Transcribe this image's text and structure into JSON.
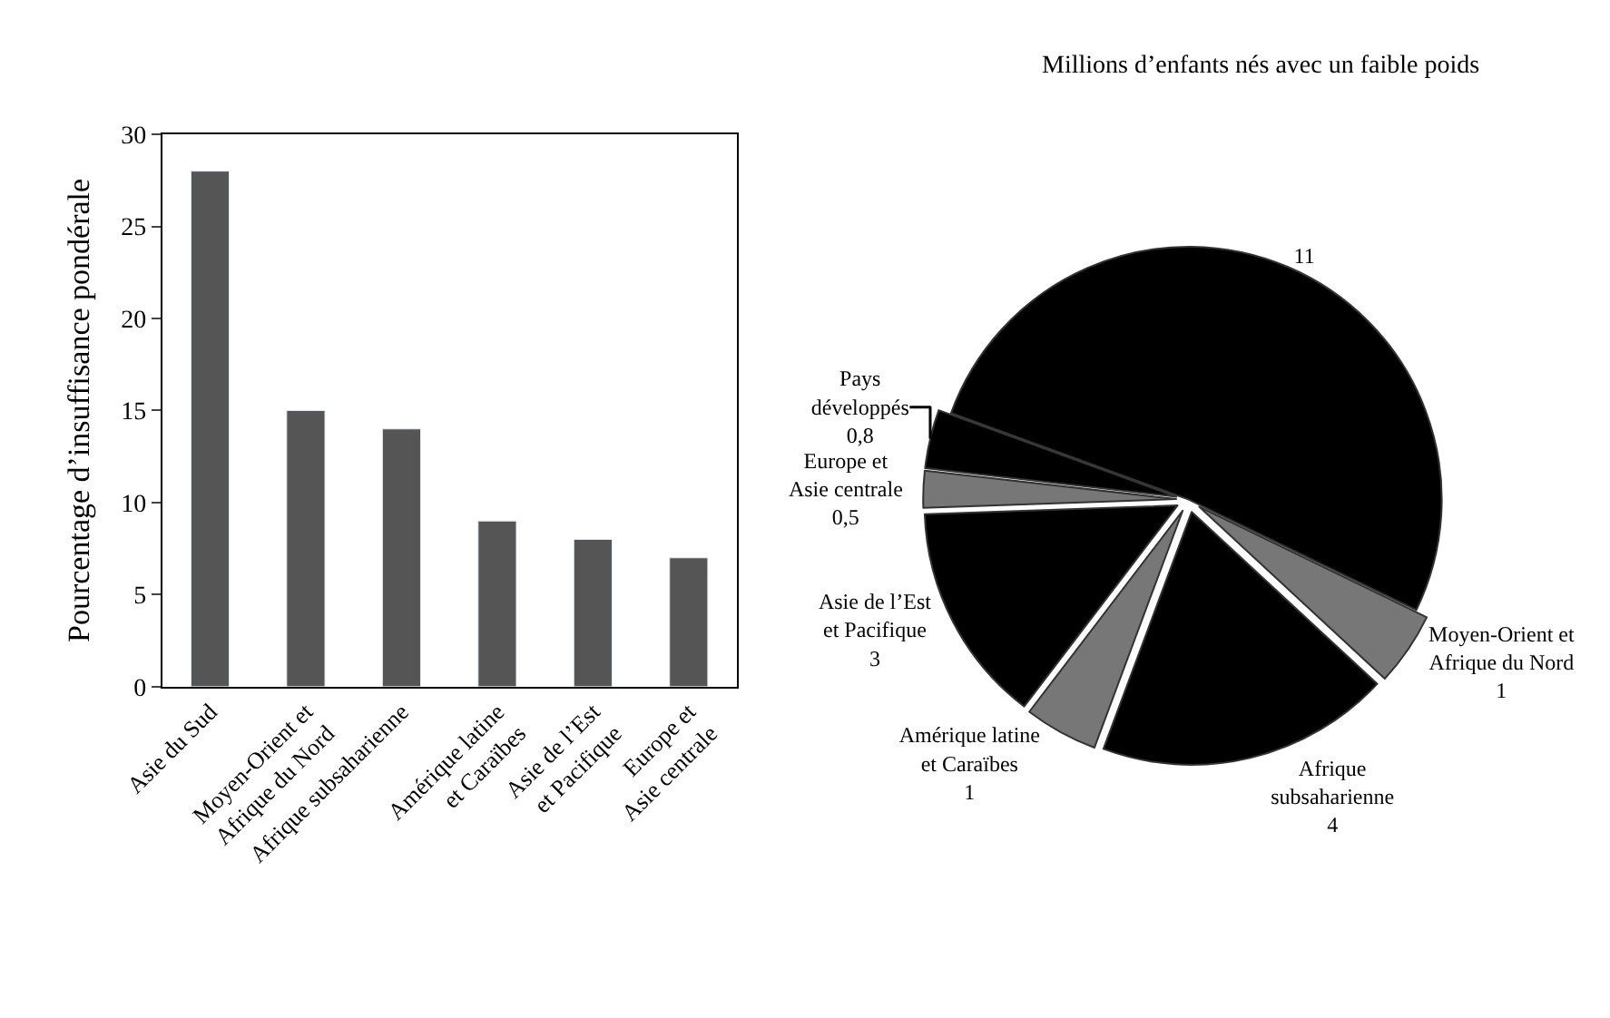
{
  "chart_data": [
    {
      "type": "bar",
      "ylabel": "Pourcentage d’insuffisance pondérale",
      "categories": [
        "Asie du Sud",
        "Moyen-Orient et\nAfrique du Nord",
        "Afrique subsaharienne",
        "Amérique latine\net Caraïbes",
        "Asie de l’Est\net Pacifique",
        "Europe et\nAsie centrale"
      ],
      "values": [
        28,
        15,
        14,
        9,
        8,
        7
      ],
      "color": "#555555",
      "ylim": [
        0,
        30
      ],
      "yticks": [
        0,
        5,
        10,
        15,
        20,
        25,
        30
      ]
    },
    {
      "type": "pie",
      "title": "Millions d’enfants nés avec un faible poids",
      "categories": [
        null,
        "Moyen-Orient et\nAfrique du Nord",
        "Afrique\nsubsaharienne",
        "Amérique latine\net Caraïbes",
        "Asie de l’Est\net Pacifique",
        "Europe et\nAsie centrale",
        "Pays\ndéveloppés"
      ],
      "values": [
        11,
        1,
        4,
        1,
        3,
        0.5,
        0.8
      ],
      "colors": [
        "#000000",
        "#777777",
        "#000000",
        "#777777",
        "#000000",
        "#777777",
        "#000000"
      ],
      "value_labels": [
        "11",
        "1",
        "4",
        "1",
        "3",
        "0,5",
        "0,8"
      ]
    }
  ]
}
